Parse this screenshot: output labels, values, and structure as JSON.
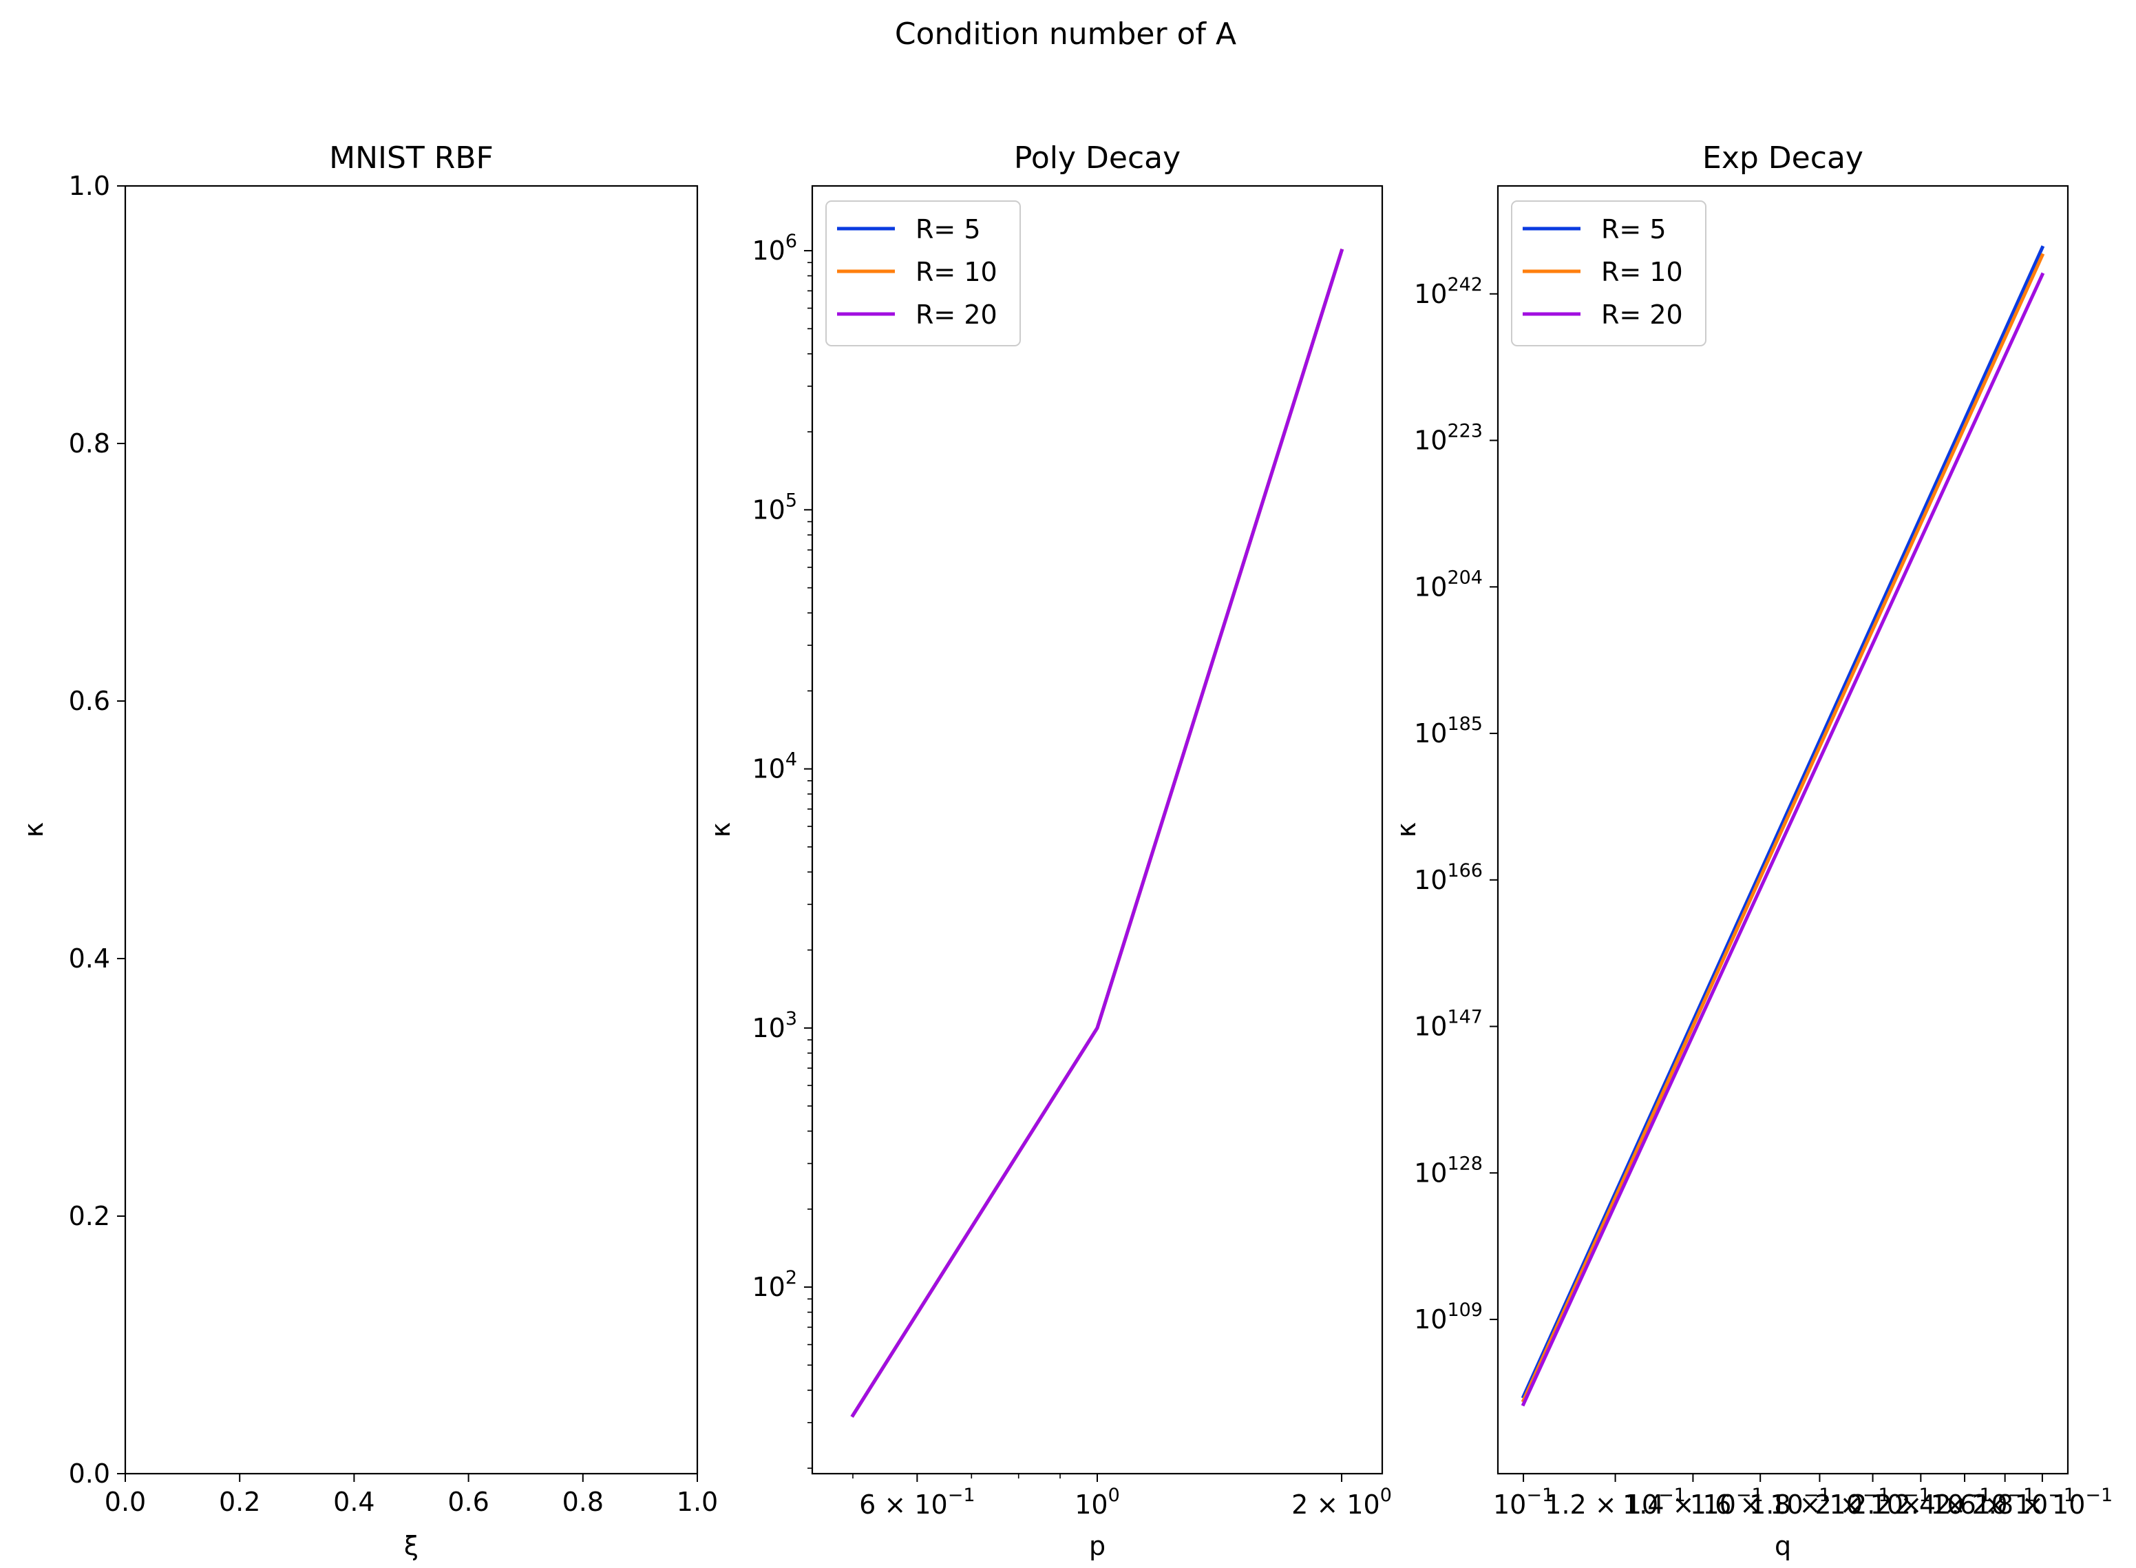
{
  "figure": {
    "suptitle": "Condition number of A"
  },
  "colors": {
    "r5": "#0b3be0",
    "r10": "#ff7f0e",
    "r20": "#a10ee0",
    "axes": "#000000",
    "legend_border": "#cccccc"
  },
  "chart_data": [
    {
      "type": "line",
      "title": "MNIST RBF",
      "xlabel": "ξ",
      "ylabel": "κ",
      "xlim": [
        0,
        1
      ],
      "ylim": [
        0,
        1
      ],
      "x_ticks": [
        "0.0",
        "0.2",
        "0.4",
        "0.6",
        "0.8",
        "1.0"
      ],
      "y_ticks": [
        "0.0",
        "0.2",
        "0.4",
        "0.6",
        "0.8",
        "1.0"
      ],
      "series": []
    },
    {
      "type": "line",
      "title": "Poly Decay",
      "xlabel": "p",
      "ylabel": "κ",
      "xscale": "log",
      "yscale": "log",
      "legend": "top-left",
      "x": [
        0.5,
        1,
        2
      ],
      "x_ticks": [
        {
          "value": 0.6,
          "base": "6 × 10",
          "exp": "−1"
        },
        {
          "value": 1,
          "base": "10",
          "exp": "0"
        },
        {
          "value": 2,
          "base": "2 × 10",
          "exp": "0"
        }
      ],
      "y_ticks": [
        {
          "value": 2,
          "base": "10",
          "exp": "2"
        },
        {
          "value": 3,
          "base": "10",
          "exp": "3"
        },
        {
          "value": 4,
          "base": "10",
          "exp": "4"
        },
        {
          "value": 5,
          "base": "10",
          "exp": "5"
        },
        {
          "value": 6,
          "base": "10",
          "exp": "6"
        }
      ],
      "series": [
        {
          "name": "R= 5",
          "color": "#0b3be0",
          "y": [
            32,
            1000,
            1000000
          ]
        },
        {
          "name": "R= 10",
          "color": "#ff7f0e",
          "y": [
            32,
            1000,
            1000000
          ]
        },
        {
          "name": "R= 20",
          "color": "#a10ee0",
          "y": [
            32,
            1000,
            1000000
          ]
        }
      ]
    },
    {
      "type": "line",
      "title": "Exp Decay",
      "xlabel": "q",
      "ylabel": "κ",
      "xscale": "log",
      "yscale": "log",
      "legend": "top-left",
      "x": [
        0.1,
        0.28
      ],
      "x_ticks": [
        {
          "value": 0.1,
          "base": "10",
          "exp": "−1"
        },
        {
          "value": 0.12,
          "base": "1.2 × 10",
          "exp": "−1"
        },
        {
          "value": 0.14,
          "base": "1.4 × 10",
          "exp": "−1"
        },
        {
          "value": 0.16,
          "base": "1.6 × 10",
          "exp": "−1"
        },
        {
          "value": 0.18,
          "base": "1.8 × 10",
          "exp": "−1"
        },
        {
          "value": 0.2,
          "base": "2 × 10",
          "exp": "−1"
        },
        {
          "value": 0.22,
          "base": "2.2 × 10",
          "exp": "−1"
        },
        {
          "value": 0.24,
          "base": "2.4 × 10",
          "exp": "−1"
        },
        {
          "value": 0.26,
          "base": "2.6 × 10",
          "exp": "−1"
        },
        {
          "value": 0.28,
          "base": "2.8 × 10",
          "exp": "−1"
        }
      ],
      "y_ticks": [
        {
          "value": 109,
          "base": "10",
          "exp": "109"
        },
        {
          "value": 128,
          "base": "10",
          "exp": "128"
        },
        {
          "value": 147,
          "base": "10",
          "exp": "147"
        },
        {
          "value": 166,
          "base": "10",
          "exp": "166"
        },
        {
          "value": 185,
          "base": "10",
          "exp": "185"
        },
        {
          "value": 204,
          "base": "10",
          "exp": "204"
        },
        {
          "value": 223,
          "base": "10",
          "exp": "223"
        },
        {
          "value": 242,
          "base": "10",
          "exp": "242"
        }
      ],
      "series": [
        {
          "name": "R= 5",
          "color": "#0b3be0",
          "y_log10": [
            99,
            248
          ]
        },
        {
          "name": "R= 10",
          "color": "#ff7f0e",
          "y_log10": [
            98.5,
            247
          ]
        },
        {
          "name": "R= 20",
          "color": "#a10ee0",
          "y_log10": [
            98,
            244.5
          ]
        }
      ]
    }
  ]
}
